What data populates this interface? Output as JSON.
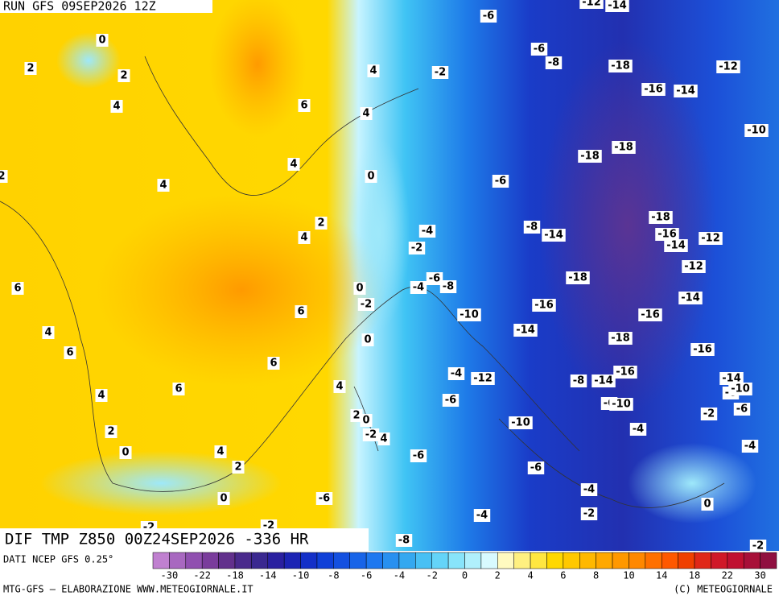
{
  "header": {
    "run": "RUN GFS 09SEP2026 12Z"
  },
  "map": {
    "title": "DIF TMP Z850 00Z24SEP2026 -336 HR",
    "contour_labels": [
      0,
      2,
      2,
      4,
      4,
      -2,
      6,
      4,
      2,
      4,
      4,
      0,
      2,
      4,
      6,
      4,
      6,
      6,
      0,
      -2,
      0,
      6,
      4,
      4,
      6,
      2,
      0,
      4,
      2,
      2,
      0,
      -2,
      4,
      0,
      -2,
      -2,
      -6,
      -6,
      -6,
      -4,
      -12,
      -10,
      -6,
      -4,
      -8,
      -4,
      -2,
      -6,
      -12,
      -14,
      -6,
      -8,
      -18,
      -16,
      -14,
      -12,
      -10,
      -18,
      -18,
      -6,
      -4,
      -8,
      -14,
      -2,
      -18,
      -16,
      -14,
      -12,
      -12,
      -6,
      -4,
      -8,
      -18,
      -16,
      -14,
      -10,
      -16,
      -14,
      -18,
      -16,
      -16,
      -8,
      -14,
      -14,
      -8,
      -10,
      -6,
      -10,
      -2,
      -6,
      -4,
      -4,
      0,
      -2
    ]
  },
  "legend": {
    "source": "DATI NCEP GFS 0.25°",
    "colors": [
      "#c080d0",
      "#a868c0",
      "#9050b0",
      "#7a3c9c",
      "#62308c",
      "#4a2a8c",
      "#3a2890",
      "#2a20a0",
      "#1c24b4",
      "#1430c8",
      "#1040d8",
      "#1450e0",
      "#1864e8",
      "#1e78f0",
      "#2890f0",
      "#34a8f0",
      "#48c0f4",
      "#64d4f8",
      "#88e4fa",
      "#b0f0fc",
      "#d8faff",
      "#fffac0",
      "#fff080",
      "#ffe640",
      "#ffd800",
      "#ffc800",
      "#ffb800",
      "#ffa800",
      "#ff9800",
      "#ff8800",
      "#ff7000",
      "#ff5800",
      "#f04000",
      "#e02818",
      "#d01828",
      "#c01030",
      "#a81038",
      "#901040"
    ],
    "ticks": [
      -30,
      -22,
      -18,
      -14,
      -10,
      -8,
      -6,
      -4,
      -2,
      0,
      2,
      4,
      6,
      8,
      10,
      14,
      18,
      22,
      30
    ]
  },
  "footer": {
    "left": "MTG-GFS — ELABORAZIONE WWW.METEOGIORNALE.IT",
    "right": "(C) METEOGIORNALE"
  }
}
